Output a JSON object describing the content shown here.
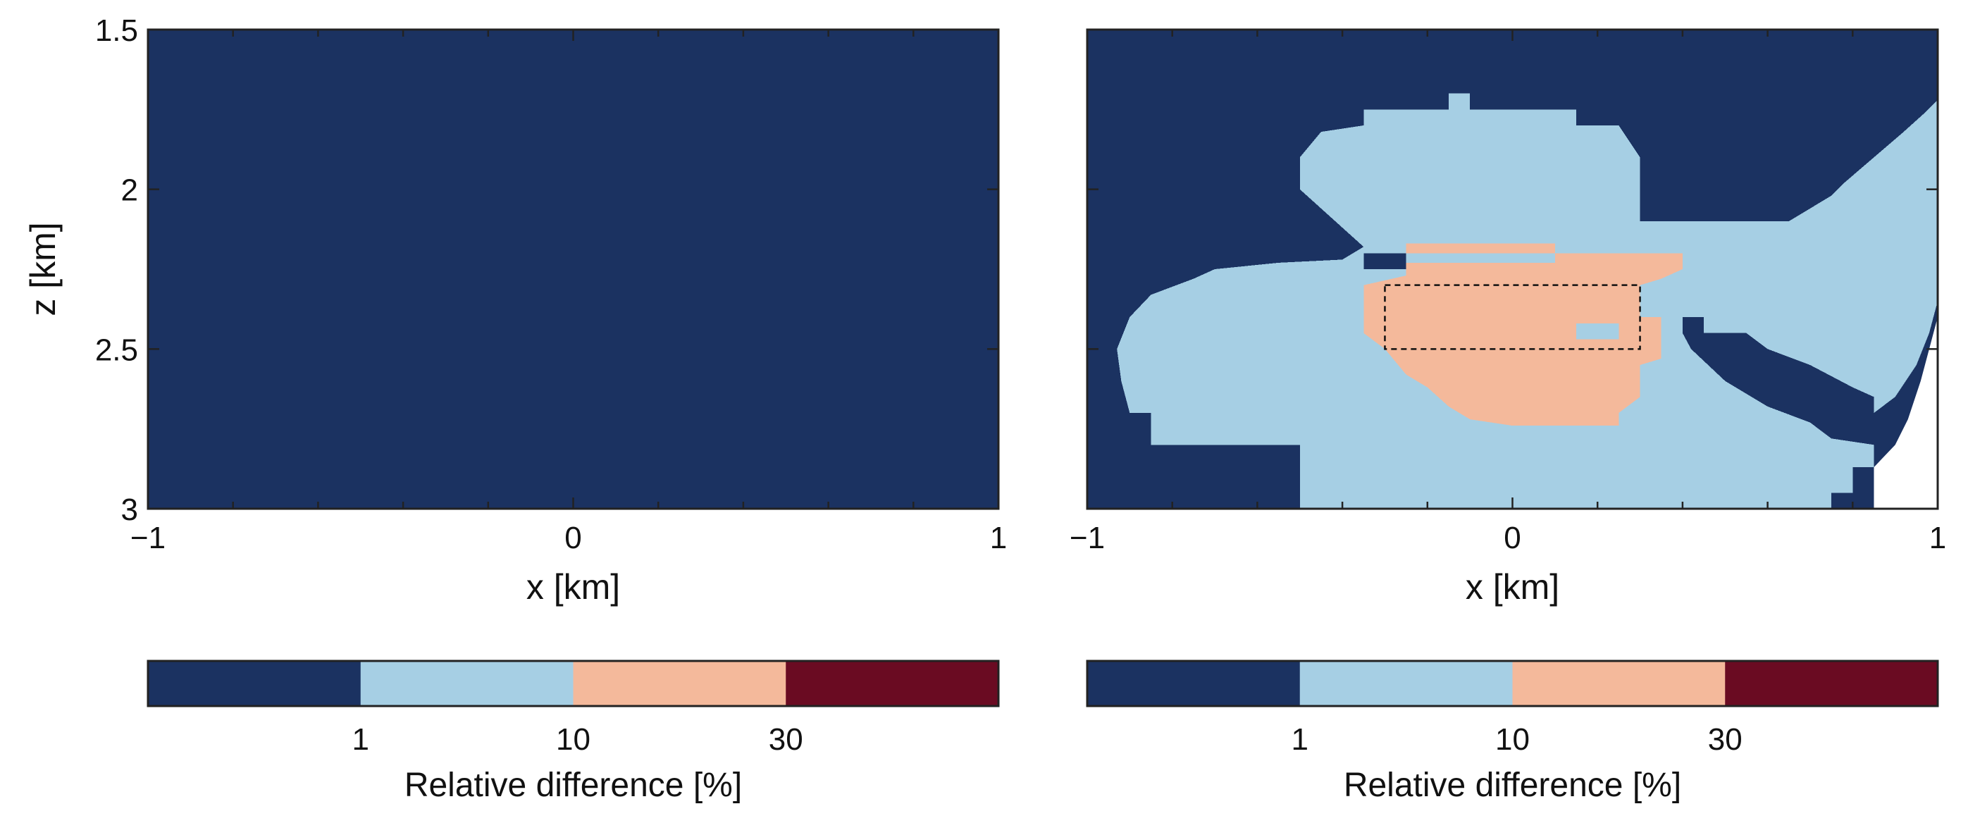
{
  "colors": {
    "band_lt1": "#1b3261",
    "band_1_10": "#a6cfe4",
    "band_10_30": "#f4b99b",
    "band_gt30": "#6a0b22",
    "frame": "#222222",
    "outside": "#ffffff"
  },
  "chart_data": [
    {
      "type": "heatmap",
      "xlabel": "x [km]",
      "ylabel": "z [km]",
      "xlim": [
        -1,
        1
      ],
      "ylim": [
        1.5,
        3
      ],
      "y_inverted": true,
      "x_ticks": [
        "−1",
        "0",
        "1"
      ],
      "x_tick_values": [
        -1,
        0,
        1
      ],
      "y_ticks": [
        "1.5",
        "2",
        "2.5",
        "3"
      ],
      "y_tick_values": [
        1.5,
        2,
        2.5,
        3
      ],
      "colorbar": {
        "label": "Relative difference [%]",
        "tick_labels": [
          "1",
          "10",
          "30"
        ],
        "bands": [
          "<1",
          "1-10",
          "10-30",
          ">30"
        ]
      },
      "fill_polygons": [
        {
          "class": "<1",
          "points": [
            [
              -1,
              1.5
            ],
            [
              1,
              1.5
            ],
            [
              1,
              3
            ],
            [
              0.75,
              3
            ],
            [
              0.75,
              2.97
            ],
            [
              0.8,
              2.97
            ],
            [
              0.8,
              2.86
            ],
            [
              0.85,
              2.86
            ],
            [
              0.85,
              2.73
            ],
            [
              0.87,
              2.73
            ],
            [
              0.87,
              2.62
            ],
            [
              0.9,
              2.62
            ],
            [
              0.9,
              2.53
            ],
            [
              0.92,
              2.53
            ],
            [
              0.92,
              2.47
            ],
            [
              0.95,
              2.47
            ],
            [
              0.95,
              2.35
            ],
            [
              0.97,
              2.35
            ],
            [
              0.97,
              2.25
            ],
            [
              0.98,
              2.25
            ],
            [
              0.98,
              2.05
            ],
            [
              0.99,
              2.05
            ],
            [
              0.99,
              1.85
            ],
            [
              1,
              1.85
            ],
            [
              1,
              3
            ],
            [
              -1,
              3
            ]
          ]
        }
      ],
      "empty_region_note": ""
    },
    {
      "type": "heatmap",
      "xlabel": "x [km]",
      "ylabel": "",
      "xlim": [
        -1,
        1
      ],
      "ylim": [
        1.5,
        3
      ],
      "y_inverted": true,
      "x_ticks": [
        "−1",
        "0",
        "1"
      ],
      "x_tick_values": [
        -1,
        0,
        1
      ],
      "y_ticks": [
        "",
        "",
        "",
        ""
      ],
      "y_tick_values": [
        1.5,
        2,
        2.5,
        3
      ],
      "dashed_box": {
        "x": [
          -0.3,
          0.3
        ],
        "z": [
          2.3,
          2.5
        ]
      },
      "colorbar": {
        "label": "Relative difference [%]",
        "tick_labels": [
          "1",
          "10",
          "30"
        ],
        "bands": [
          "<1",
          "1-10",
          "10-30",
          ">30"
        ]
      },
      "fill_polygons": [
        {
          "class": "1-10",
          "points": [
            [
              -0.35,
              2.18
            ],
            [
              -0.5,
              2.0
            ],
            [
              -0.5,
              1.9
            ],
            [
              -0.45,
              1.82
            ],
            [
              -0.35,
              1.8
            ],
            [
              -0.35,
              1.75
            ],
            [
              -0.15,
              1.75
            ],
            [
              -0.15,
              1.7
            ],
            [
              -0.1,
              1.7
            ],
            [
              -0.1,
              1.75
            ],
            [
              0.15,
              1.75
            ],
            [
              0.15,
              1.8
            ],
            [
              0.25,
              1.8
            ],
            [
              0.3,
              1.9
            ],
            [
              0.3,
              2.1
            ],
            [
              0.65,
              2.1
            ],
            [
              0.75,
              2.02
            ],
            [
              0.78,
              1.98
            ],
            [
              0.85,
              1.9
            ],
            [
              0.92,
              1.82
            ],
            [
              0.97,
              1.76
            ],
            [
              1,
              1.72
            ],
            [
              1,
              2.35
            ],
            [
              0.98,
              2.45
            ],
            [
              0.95,
              2.55
            ],
            [
              0.9,
              2.65
            ],
            [
              0.85,
              2.7
            ],
            [
              0.85,
              2.87
            ],
            [
              0.8,
              2.87
            ],
            [
              0.8,
              2.95
            ],
            [
              0.75,
              2.95
            ],
            [
              0.75,
              3
            ],
            [
              -0.5,
              3
            ],
            [
              -0.5,
              2.8
            ],
            [
              -0.85,
              2.8
            ],
            [
              -0.85,
              2.7
            ],
            [
              -0.9,
              2.7
            ],
            [
              -0.92,
              2.6
            ],
            [
              -0.93,
              2.5
            ],
            [
              -0.9,
              2.4
            ],
            [
              -0.85,
              2.33
            ],
            [
              -0.75,
              2.28
            ],
            [
              -0.7,
              2.25
            ],
            [
              -0.55,
              2.23
            ],
            [
              -0.4,
              2.22
            ]
          ]
        },
        {
          "class": "<1",
          "points": [
            [
              -0.35,
              2.2
            ],
            [
              -0.25,
              2.2
            ],
            [
              -0.25,
              2.25
            ],
            [
              -0.35,
              2.25
            ]
          ]
        },
        {
          "class": "<1",
          "points": [
            [
              0.4,
              2.4
            ],
            [
              0.45,
              2.4
            ],
            [
              0.45,
              2.45
            ],
            [
              0.55,
              2.45
            ],
            [
              0.6,
              2.5
            ],
            [
              0.7,
              2.55
            ],
            [
              0.8,
              2.62
            ],
            [
              0.85,
              2.65
            ],
            [
              0.85,
              2.8
            ],
            [
              0.75,
              2.78
            ],
            [
              0.7,
              2.73
            ],
            [
              0.6,
              2.68
            ],
            [
              0.5,
              2.6
            ],
            [
              0.42,
              2.5
            ],
            [
              0.4,
              2.45
            ]
          ]
        },
        {
          "class": "10-30",
          "points": [
            [
              -0.25,
              2.17
            ],
            [
              0.1,
              2.17
            ],
            [
              0.1,
              2.2
            ],
            [
              0.4,
              2.2
            ],
            [
              0.4,
              2.25
            ],
            [
              0.35,
              2.28
            ],
            [
              0.3,
              2.3
            ],
            [
              0.3,
              2.4
            ],
            [
              0.35,
              2.4
            ],
            [
              0.35,
              2.53
            ],
            [
              0.3,
              2.55
            ],
            [
              0.3,
              2.65
            ],
            [
              0.25,
              2.7
            ],
            [
              0.25,
              2.74
            ],
            [
              0,
              2.74
            ],
            [
              -0.1,
              2.72
            ],
            [
              -0.15,
              2.68
            ],
            [
              -0.2,
              2.62
            ],
            [
              -0.25,
              2.58
            ],
            [
              -0.3,
              2.5
            ],
            [
              -0.35,
              2.45
            ],
            [
              -0.35,
              2.3
            ],
            [
              -0.25,
              2.27
            ]
          ]
        },
        {
          "class": "1-10",
          "points": [
            [
              -0.25,
              2.2
            ],
            [
              0.1,
              2.2
            ],
            [
              0.1,
              2.23
            ],
            [
              -0.25,
              2.23
            ]
          ]
        },
        {
          "class": "1-10",
          "points": [
            [
              0.15,
              2.42
            ],
            [
              0.25,
              2.42
            ],
            [
              0.25,
              2.47
            ],
            [
              0.15,
              2.47
            ]
          ]
        }
      ]
    }
  ]
}
